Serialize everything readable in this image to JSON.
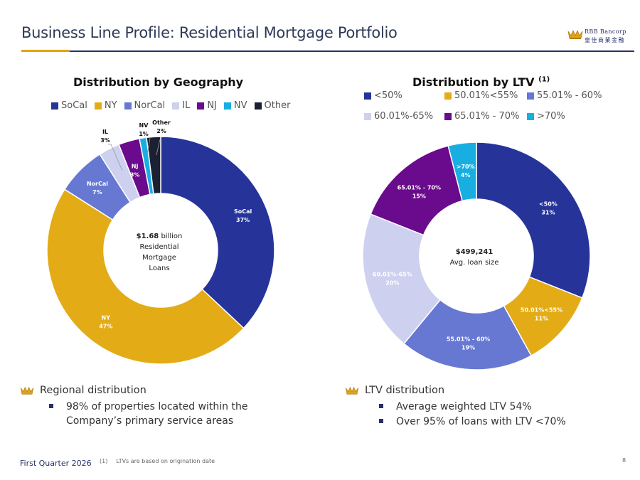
{
  "header": {
    "title": "Business Line Profile: Residential Mortgage Portfolio",
    "logo_line1": "RBB Bancorp",
    "logo_line2": "皇佳商業金融",
    "colors": {
      "navy": "#26306b",
      "gold": "#e2a318"
    }
  },
  "chart_data": [
    {
      "type": "pie",
      "variant": "donut",
      "title": "Distribution by Geography",
      "legend_position": "top",
      "center": {
        "amount": "$1.68",
        "line1_rest": " billion",
        "line2": "Residential",
        "line3": "Mortgage",
        "line4": "Loans"
      },
      "slices": [
        {
          "label": "SoCal",
          "value": 37,
          "value_label": "37%",
          "color": "#26349a"
        },
        {
          "label": "NY",
          "value": 47,
          "value_label": "47%",
          "color": "#e3ac16"
        },
        {
          "label": "NorCal",
          "value": 7,
          "value_label": "7%",
          "color": "#6678d2"
        },
        {
          "label": "IL",
          "value": 3,
          "value_label": "3%",
          "color": "#cdd1ef"
        },
        {
          "label": "NJ",
          "value": 3,
          "value_label": "3%",
          "color": "#6a0a8c"
        },
        {
          "label": "NV",
          "value": 1,
          "value_label": "1%",
          "color": "#18aee2"
        },
        {
          "label": "Other",
          "value": 2,
          "value_label": "2%",
          "color": "#1b2033"
        }
      ]
    },
    {
      "type": "pie",
      "variant": "donut",
      "title": "Distribution by LTV",
      "title_footnote": "(1)",
      "legend_position": "top",
      "center": {
        "amount": "$499,241",
        "subtitle": "Avg. loan size"
      },
      "slices": [
        {
          "label": "<50%",
          "value": 31,
          "value_label": "31%",
          "color": "#26349a"
        },
        {
          "label": "50.01%<55%",
          "value": 11,
          "value_label": "11%",
          "color": "#e3ac16"
        },
        {
          "label": "55.01% - 60%",
          "value": 19,
          "value_label": "19%",
          "color": "#6678d2"
        },
        {
          "label": "60.01%-65%",
          "value": 20,
          "value_label": "20%",
          "color": "#cdd1ef"
        },
        {
          "label": "65.01% - 70%",
          "value": 15,
          "value_label": "15%",
          "color": "#6a0a8c"
        },
        {
          "label": ">70%",
          "value": 4,
          "value_label": "4%",
          "color": "#18aee2"
        }
      ]
    }
  ],
  "bullets": {
    "left": {
      "heading": "Regional distribution",
      "items": [
        "98% of properties located within the Company’s primary service areas"
      ]
    },
    "right": {
      "heading": "LTV distribution",
      "items": [
        "Average weighted LTV 54%",
        "Over 95% of loans with LTV <70%"
      ]
    }
  },
  "footer": {
    "period": "First Quarter 2026",
    "footnote_num": "(1)",
    "footnote_text": "LTVs are based on origination date",
    "page": "8"
  }
}
